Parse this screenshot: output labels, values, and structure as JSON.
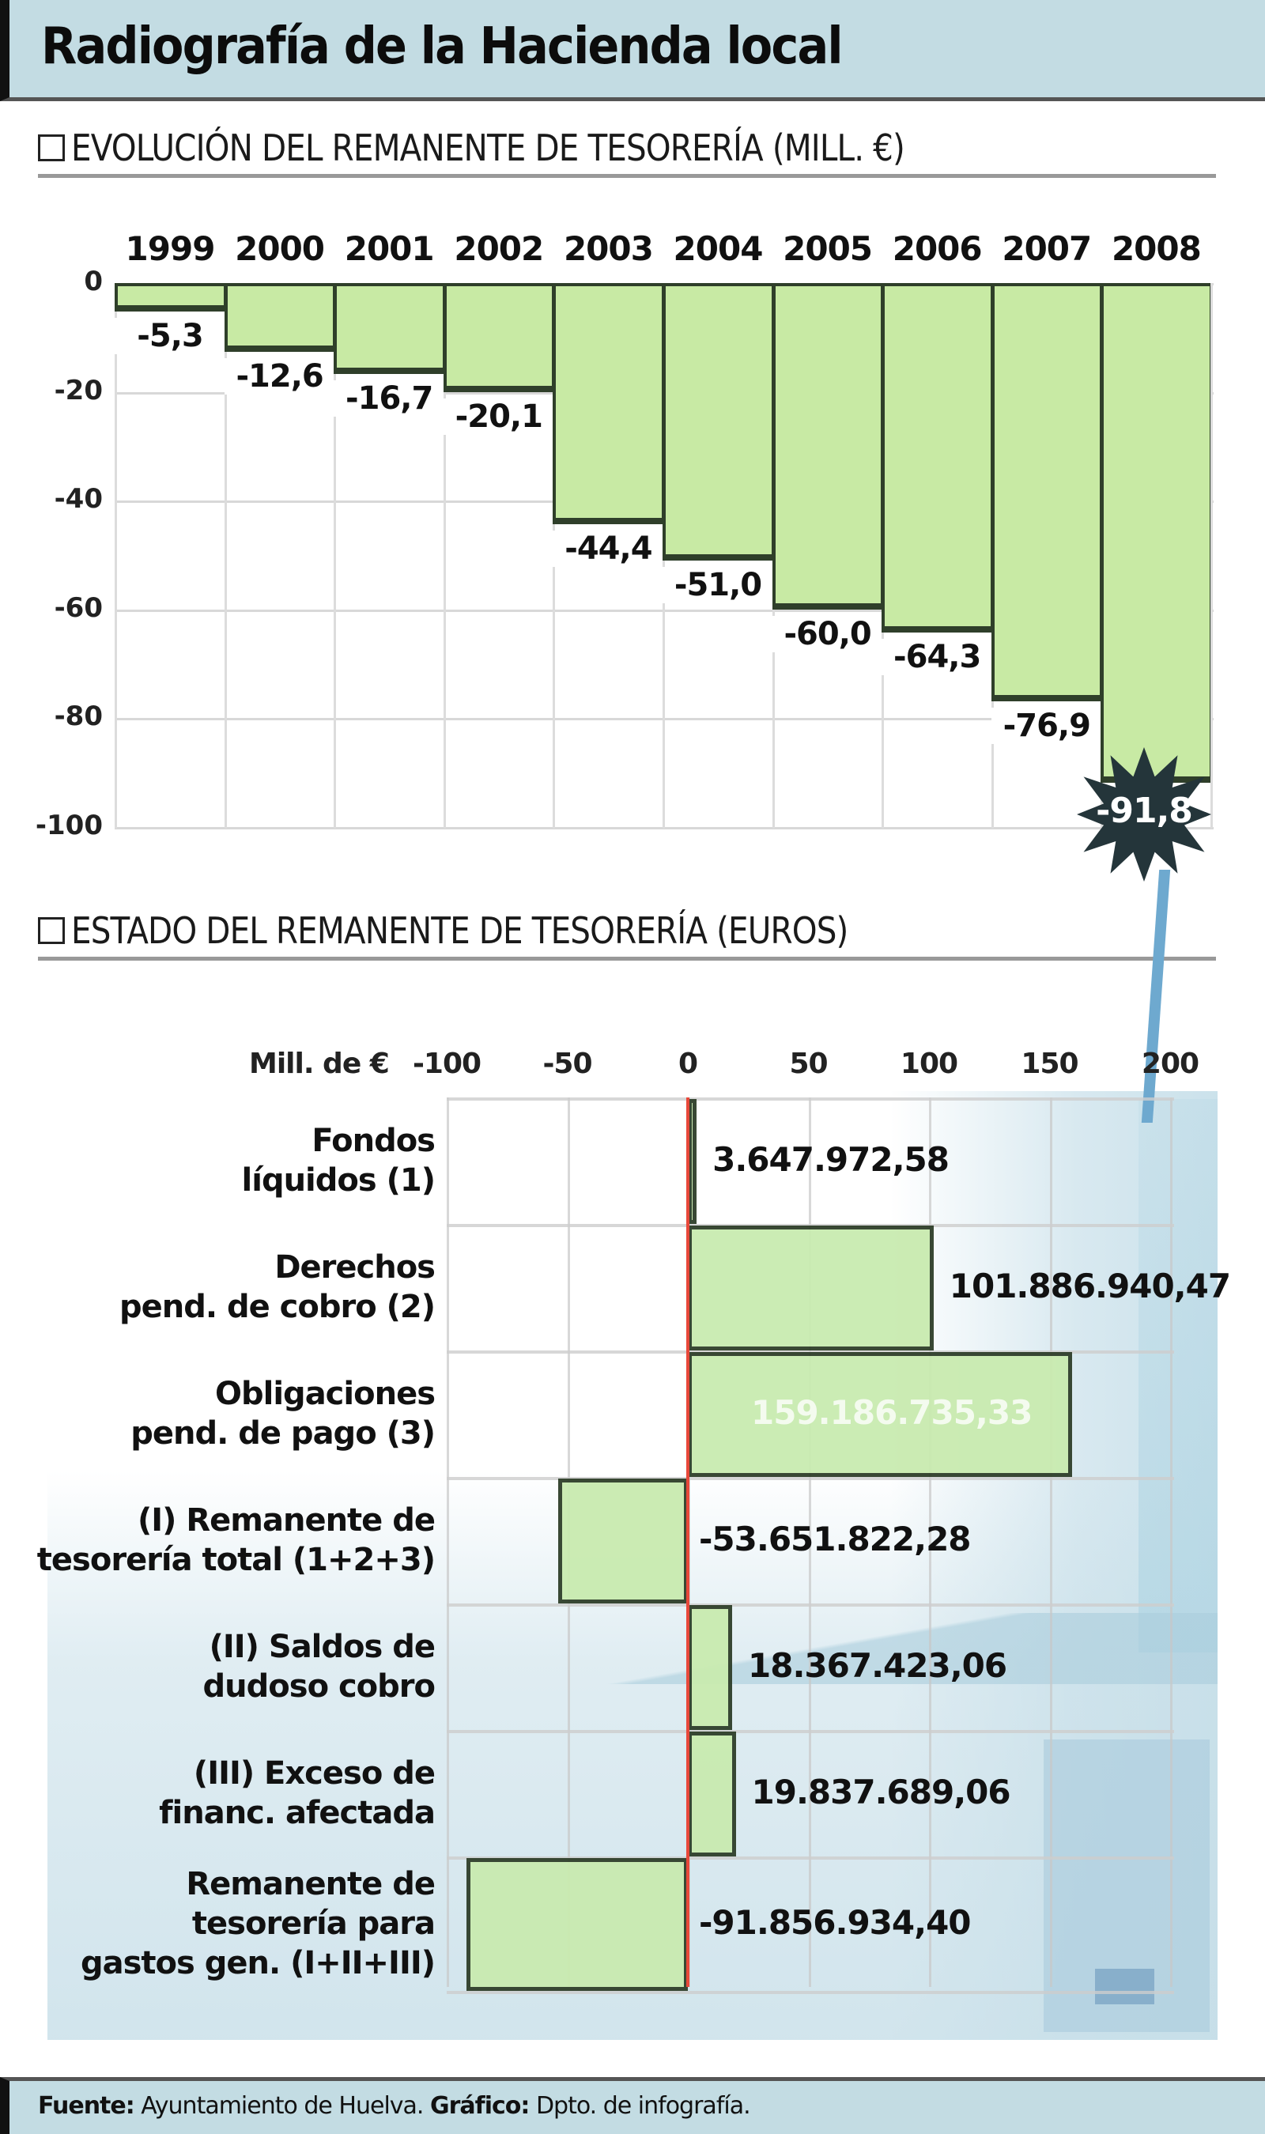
{
  "title": "Radiografía de la Hacienda local",
  "section1": {
    "header": "EVOLUCIÓN DEL REMANENTE DE TESORERÍA (MILL. €)"
  },
  "section2": {
    "header": "ESTADO DEL REMANENTE DE TESORERÍA (EUROS)"
  },
  "footer": {
    "source_label": "Fuente:",
    "source": "Ayuntamiento de Huelva.",
    "graphic_label": "Gráfico:",
    "graphic": "Dpto. de infografía."
  },
  "colors": {
    "bar_fill": "#c8eaa4",
    "bar_border": "#2f3f2a",
    "zero_line": "#e8483a",
    "banner": "#c3dce3",
    "burst": "#24353a"
  },
  "chart_data": [
    {
      "type": "bar",
      "title": "EVOLUCIÓN DEL REMANENTE DE TESORERÍA (MILL. €)",
      "categories": [
        "1999",
        "2000",
        "2001",
        "2002",
        "2003",
        "2004",
        "2005",
        "2006",
        "2007",
        "2008"
      ],
      "values": [
        -5.3,
        -12.6,
        -16.7,
        -20.1,
        -44.4,
        -51.0,
        -60.0,
        -64.3,
        -76.9,
        -91.8
      ],
      "value_labels": [
        "-5,3",
        "-12,6",
        "-16,7",
        "-20,1",
        "-44,4",
        "-51,0",
        "-60,0",
        "-64,3",
        "-76,9",
        "-91,8"
      ],
      "xlabel": "",
      "ylabel": "Mill. €",
      "ylim": [
        -100,
        0
      ],
      "yticks": [
        "0",
        "-20",
        "-40",
        "-60",
        "-80",
        "-100"
      ],
      "grid": true,
      "highlight": {
        "category": "2008",
        "style": "starburst"
      }
    },
    {
      "type": "bar",
      "orientation": "horizontal",
      "title": "ESTADO DEL REMANENTE DE TESORERÍA (EUROS)",
      "axis_label": "Mill. de €",
      "xticks": [
        "-100",
        "-50",
        "0",
        "50",
        "100",
        "150",
        "200"
      ],
      "xlim": [
        -100,
        200
      ],
      "categories": [
        [
          "Fondos",
          "líquidos (1)"
        ],
        [
          "Derechos",
          "pend. de cobro (2)"
        ],
        [
          "Obligaciones",
          "pend. de pago (3)"
        ],
        [
          "(I) Remanente de",
          "tesorería total (1+2+3)"
        ],
        [
          "(II) Saldos de",
          "dudoso cobro"
        ],
        [
          "(III) Exceso de",
          "financ. afectada"
        ],
        [
          "Remanente de",
          "tesorería para",
          "gastos gen. (I+II+III)"
        ]
      ],
      "values": [
        3.65,
        101.89,
        159.19,
        -53.65,
        18.37,
        19.84,
        -91.86
      ],
      "value_labels": [
        "3.647.972,58",
        "101.886.940,47",
        "159.186.735,33",
        "-53.651.822,28",
        "18.367.423,06",
        "19.837.689,06",
        "-91.856.934,40"
      ],
      "grid": true
    }
  ]
}
